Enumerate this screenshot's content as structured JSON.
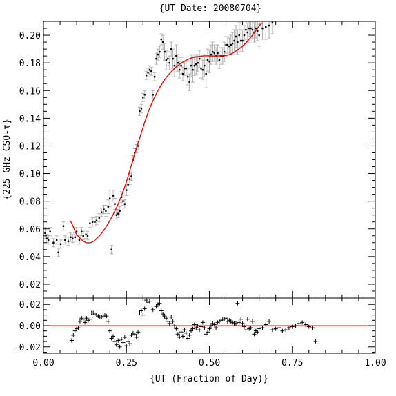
{
  "chart_data": {
    "type": "scatter",
    "title": "{UT Date: 20080704}",
    "xlabel": "{UT (Fraction of Day)}",
    "ylabel": "{225 GHz CSO-τ}",
    "xlim": [
      0.0,
      1.0
    ],
    "xticks": [
      "0.00",
      "0.25",
      "0.50",
      "0.75",
      "1.00"
    ],
    "top_panel": {
      "ylim": [
        0.01,
        0.21
      ],
      "yticks": [
        "0.02",
        "0.04",
        "0.06",
        "0.08",
        "0.10",
        "0.12",
        "0.14",
        "0.16",
        "0.18",
        "0.20"
      ],
      "data_x": [
        0.005,
        0.01,
        0.015,
        0.02,
        0.03,
        0.04,
        0.045,
        0.052,
        0.06,
        0.065,
        0.075,
        0.082,
        0.088,
        0.095,
        0.1,
        0.108,
        0.115,
        0.12,
        0.128,
        0.133,
        0.14,
        0.148,
        0.155,
        0.16,
        0.168,
        0.175,
        0.182,
        0.188,
        0.195,
        0.2,
        0.205,
        0.21,
        0.215,
        0.22,
        0.225,
        0.23,
        0.235,
        0.24,
        0.245,
        0.25,
        0.255,
        0.26,
        0.265,
        0.27,
        0.275,
        0.28,
        0.285,
        0.29,
        0.295,
        0.3,
        0.305,
        0.31,
        0.315,
        0.32,
        0.325,
        0.33,
        0.335,
        0.34,
        0.345,
        0.35,
        0.355,
        0.36,
        0.365,
        0.37,
        0.375,
        0.38,
        0.385,
        0.39,
        0.395,
        0.4,
        0.405,
        0.41,
        0.415,
        0.42,
        0.425,
        0.43,
        0.435,
        0.44,
        0.445,
        0.45,
        0.455,
        0.46,
        0.465,
        0.47,
        0.475,
        0.48,
        0.485,
        0.49,
        0.495,
        0.5,
        0.505,
        0.51,
        0.515,
        0.52,
        0.525,
        0.53,
        0.535,
        0.54,
        0.545,
        0.55,
        0.555,
        0.56,
        0.565,
        0.57,
        0.575,
        0.58,
        0.585,
        0.59,
        0.595,
        0.6,
        0.605,
        0.61,
        0.615,
        0.62,
        0.625,
        0.63,
        0.635,
        0.64,
        0.645,
        0.65,
        0.66,
        0.67,
        0.68,
        0.69
      ],
      "data_y": [
        0.057,
        0.053,
        0.052,
        0.058,
        0.05,
        0.052,
        0.043,
        0.049,
        0.062,
        0.052,
        0.051,
        0.054,
        0.053,
        0.054,
        0.058,
        0.052,
        0.058,
        0.055,
        0.056,
        0.055,
        0.064,
        0.065,
        0.065,
        0.066,
        0.068,
        0.072,
        0.074,
        0.073,
        0.076,
        0.082,
        0.045,
        0.084,
        0.078,
        0.07,
        0.071,
        0.073,
        0.083,
        0.08,
        0.078,
        0.088,
        0.092,
        0.096,
        0.098,
        0.11,
        0.115,
        0.118,
        0.12,
        0.145,
        0.147,
        0.155,
        0.157,
        0.171,
        0.173,
        0.175,
        0.174,
        0.157,
        0.17,
        0.183,
        0.186,
        0.188,
        0.197,
        0.195,
        0.188,
        0.182,
        0.183,
        0.18,
        0.19,
        0.183,
        0.178,
        0.185,
        0.18,
        0.175,
        0.178,
        0.172,
        0.176,
        0.176,
        0.17,
        0.166,
        0.178,
        0.175,
        0.178,
        0.179,
        0.18,
        0.183,
        0.176,
        0.175,
        0.178,
        0.172,
        0.182,
        0.181,
        0.186,
        0.188,
        0.187,
        0.185,
        0.187,
        0.182,
        0.185,
        0.185,
        0.188,
        0.193,
        0.193,
        0.192,
        0.193,
        0.194,
        0.196,
        0.199,
        0.195,
        0.2,
        0.196,
        0.196,
        0.2,
        0.204,
        0.202,
        0.205,
        0.205,
        0.204,
        0.202,
        0.205,
        0.203,
        0.2,
        0.205,
        0.206,
        0.207,
        0.209
      ],
      "data_err": [
        0.004,
        0.003,
        0.003,
        0.003,
        0.003,
        0.003,
        0.003,
        0.003,
        0.003,
        0.003,
        0.003,
        0.003,
        0.003,
        0.003,
        0.003,
        0.003,
        0.003,
        0.003,
        0.003,
        0.003,
        0.003,
        0.003,
        0.003,
        0.003,
        0.003,
        0.003,
        0.003,
        0.004,
        0.005,
        0.006,
        0.003,
        0.004,
        0.004,
        0.003,
        0.003,
        0.003,
        0.004,
        0.003,
        0.003,
        0.004,
        0.004,
        0.004,
        0.003,
        0.003,
        0.003,
        0.003,
        0.003,
        0.003,
        0.003,
        0.003,
        0.003,
        0.003,
        0.003,
        0.003,
        0.003,
        0.003,
        0.003,
        0.004,
        0.004,
        0.004,
        0.004,
        0.005,
        0.006,
        0.007,
        0.005,
        0.005,
        0.005,
        0.007,
        0.008,
        0.008,
        0.006,
        0.006,
        0.006,
        0.005,
        0.005,
        0.005,
        0.006,
        0.006,
        0.008,
        0.009,
        0.007,
        0.007,
        0.006,
        0.006,
        0.007,
        0.007,
        0.008,
        0.01,
        0.008,
        0.008,
        0.007,
        0.007,
        0.006,
        0.006,
        0.006,
        0.006,
        0.006,
        0.006,
        0.007,
        0.006,
        0.006,
        0.006,
        0.007,
        0.008,
        0.008,
        0.008,
        0.009,
        0.009,
        0.008,
        0.008,
        0.007,
        0.007,
        0.007,
        0.006,
        0.006,
        0.006,
        0.007,
        0.007,
        0.007,
        0.008,
        0.008,
        0.009,
        0.009,
        0.008
      ],
      "fit_x_range": [
        0.08,
        0.66
      ],
      "fit_color": "#ff0000",
      "errorbar_color": "#b0b0b0",
      "point_color": "#000000"
    },
    "bottom_panel": {
      "ylim": [
        -0.026,
        0.026
      ],
      "yticks": [
        "-0.02",
        "0.00",
        "0.02"
      ],
      "zero_line_color": "#ff0000",
      "residual_x": [
        0.085,
        0.09,
        0.095,
        0.1,
        0.105,
        0.11,
        0.115,
        0.12,
        0.125,
        0.13,
        0.135,
        0.14,
        0.145,
        0.15,
        0.155,
        0.16,
        0.165,
        0.17,
        0.175,
        0.18,
        0.185,
        0.19,
        0.195,
        0.2,
        0.205,
        0.21,
        0.215,
        0.22,
        0.225,
        0.23,
        0.235,
        0.24,
        0.245,
        0.25,
        0.255,
        0.26,
        0.265,
        0.27,
        0.275,
        0.28,
        0.285,
        0.29,
        0.295,
        0.3,
        0.305,
        0.31,
        0.315,
        0.32,
        0.33,
        0.34,
        0.345,
        0.35,
        0.355,
        0.36,
        0.365,
        0.37,
        0.375,
        0.38,
        0.385,
        0.39,
        0.395,
        0.4,
        0.405,
        0.41,
        0.415,
        0.42,
        0.425,
        0.43,
        0.435,
        0.44,
        0.445,
        0.45,
        0.455,
        0.46,
        0.465,
        0.47,
        0.475,
        0.48,
        0.485,
        0.49,
        0.495,
        0.5,
        0.505,
        0.51,
        0.515,
        0.52,
        0.525,
        0.53,
        0.535,
        0.54,
        0.545,
        0.55,
        0.555,
        0.56,
        0.565,
        0.57,
        0.575,
        0.58,
        0.585,
        0.59,
        0.595,
        0.6,
        0.605,
        0.61,
        0.615,
        0.62,
        0.625,
        0.63,
        0.635,
        0.64,
        0.645,
        0.65,
        0.66,
        0.67,
        0.68,
        0.69,
        0.7,
        0.71,
        0.72,
        0.73,
        0.74,
        0.75,
        0.76,
        0.77,
        0.78,
        0.79,
        0.8,
        0.81,
        0.82
      ],
      "residual_y": [
        -0.014,
        -0.009,
        -0.005,
        -0.003,
        -0.002,
        0.004,
        0.007,
        0.006,
        0.003,
        0.007,
        0.005,
        0.006,
        0.012,
        0.012,
        0.011,
        0.01,
        0.009,
        0.008,
        0.008,
        0.009,
        0.01,
        0.009,
        0.004,
        -0.005,
        -0.012,
        -0.01,
        -0.015,
        -0.018,
        -0.014,
        -0.02,
        -0.013,
        -0.016,
        -0.011,
        -0.019,
        -0.015,
        -0.017,
        -0.009,
        -0.007,
        -0.008,
        -0.011,
        -0.006,
        0.012,
        0.014,
        0.01,
        0.016,
        0.024,
        0.022,
        0.023,
        0.015,
        0.018,
        0.02,
        0.021,
        0.014,
        0.011,
        0.009,
        0.007,
        0.004,
        0.002,
        0.008,
        0.004,
        0.0,
        -0.003,
        -0.008,
        -0.011,
        -0.006,
        -0.01,
        -0.004,
        -0.007,
        -0.012,
        -0.009,
        -0.005,
        -0.003,
        0.001,
        -0.002,
        0.0,
        -0.004,
        -0.001,
        0.003,
        -0.002,
        -0.008,
        -0.006,
        -0.003,
        0.0,
        0.002,
        0.001,
        -0.002,
        0.003,
        0.004,
        0.005,
        0.006,
        0.006,
        0.007,
        0.004,
        0.005,
        0.004,
        0.003,
        0.002,
        0.002,
        0.021,
        0.003,
        0.006,
        0.002,
        -0.001,
        -0.004,
        0.006,
        -0.003,
        -0.002,
        0.004,
        -0.008,
        -0.005,
        -0.006,
        -0.003,
        -0.002,
        0.001,
        0.004,
        -0.004,
        -0.003,
        -0.002,
        -0.005,
        -0.004,
        -0.002,
        -0.001,
        0.0,
        0.002,
        0.003,
        0.001,
        -0.001,
        -0.002,
        -0.015
      ]
    }
  }
}
